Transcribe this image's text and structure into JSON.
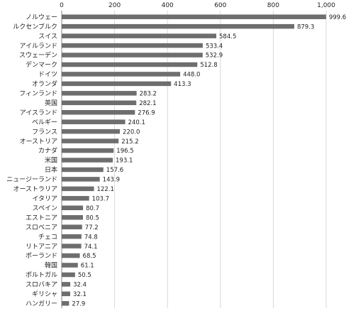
{
  "chart_data": {
    "type": "bar",
    "orientation": "horizontal",
    "title": "",
    "xlabel": "",
    "ylabel": "",
    "xlim": [
      0,
      1000
    ],
    "x_ticks": [
      0,
      200,
      400,
      600,
      800,
      1000
    ],
    "x_tick_labels": [
      "0",
      "200",
      "400",
      "600",
      "800",
      "1,000"
    ],
    "x_axis_position": "top",
    "grid": true,
    "legend": "none",
    "bar_color": "#6e6e6e",
    "categories": [
      "ノルウェー",
      "ルクセンブルク",
      "スイス",
      "アイルランド",
      "スウェーデン",
      "デンマーク",
      "ドイツ",
      "オランダ",
      "フィンランド",
      "英国",
      "アイスランド",
      "ベルギー",
      "フランス",
      "オーストリア",
      "カナダ",
      "米国",
      "日本",
      "ニュージーランド",
      "オーストラリア",
      "イタリア",
      "スペイン",
      "エストニア",
      "スロベニア",
      "チェコ",
      "リトアニア",
      "ポーランド",
      "韓国",
      "ポルトガル",
      "スロバキア",
      "ギリシャ",
      "ハンガリー"
    ],
    "values": [
      999.6,
      879.3,
      584.5,
      533.4,
      532.9,
      512.8,
      448.0,
      413.3,
      283.2,
      282.1,
      276.9,
      240.1,
      220.0,
      215.2,
      196.5,
      193.1,
      157.6,
      143.9,
      122.1,
      103.7,
      80.7,
      80.5,
      77.2,
      74.8,
      74.1,
      68.5,
      61.1,
      50.5,
      32.4,
      32.1,
      27.9
    ],
    "value_labels": [
      "999.6",
      "879.3",
      "584.5",
      "533.4",
      "532.9",
      "512.8",
      "448.0",
      "413.3",
      "283.2",
      "282.1",
      "276.9",
      "240.1",
      "220.0",
      "215.2",
      "196.5",
      "193.1",
      "157.6",
      "143.9",
      "122.1",
      "103.7",
      "80.7",
      "80.5",
      "77.2",
      "74.8",
      "74.1",
      "68.5",
      "61.1",
      "50.5",
      "32.4",
      "32.1",
      "27.9"
    ]
  }
}
